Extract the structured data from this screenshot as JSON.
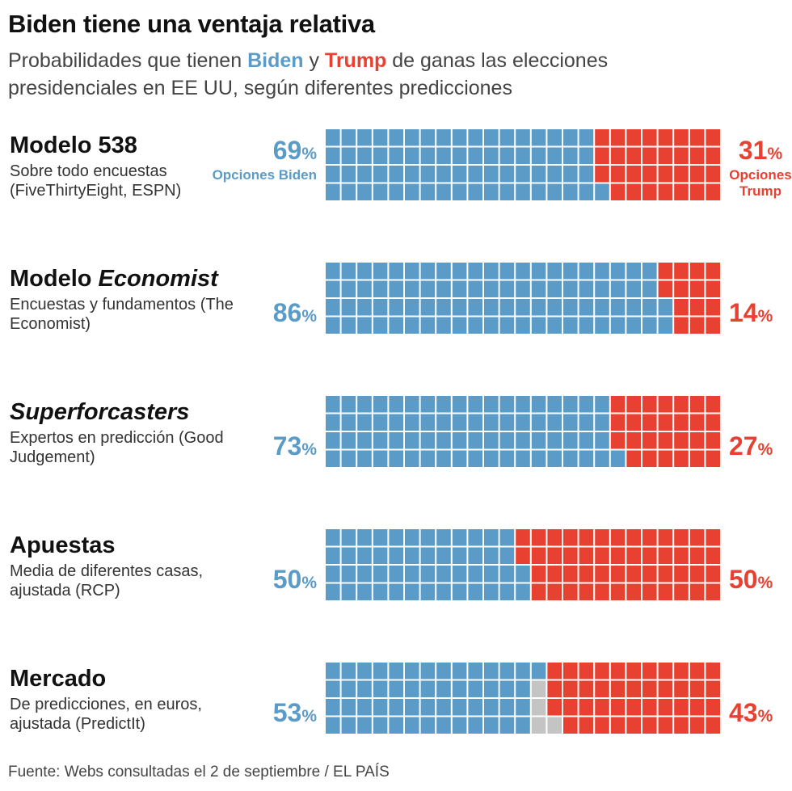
{
  "title": "Biden tiene una ventaja relativa",
  "subtitle": {
    "pre": "Probabilidades que tienen ",
    "biden": "Biden",
    "mid": " y ",
    "trump": "Trump",
    "post": " de ganas las elecciones presidenciales en EE UU, según diferentes predicciones"
  },
  "colors": {
    "biden": "#5b9bc8",
    "trump": "#e84132",
    "other": "#c4c4c4"
  },
  "chart_data": {
    "type": "waffle",
    "grid": {
      "rows": 4,
      "columns": 25
    },
    "rows": [
      {
        "head": "Modelo 538",
        "head_italic": false,
        "desc": "Sobre todo encuestas (FiveThirtyEight, ESPN)",
        "biden": 69,
        "trump": 31,
        "biden_label": "69",
        "trump_label": "31",
        "biden_note": "Opciones Biden",
        "trump_note": "Opciones Trump"
      },
      {
        "head_pre": "Modelo ",
        "head": "Economist",
        "head_italic": true,
        "desc": "Encuestas y fundamentos (The Economist)",
        "biden": 86,
        "trump": 14,
        "biden_label": "86",
        "trump_label": "14"
      },
      {
        "head": "Superforcasters",
        "head_italic": true,
        "desc": "Expertos en predicción (Good Judgement)",
        "biden": 73,
        "trump": 27,
        "biden_label": "73",
        "trump_label": "27"
      },
      {
        "head": "Apuestas",
        "head_italic": false,
        "desc": "Media de diferentes casas, ajustada (RCP)",
        "biden": 50,
        "trump": 50,
        "biden_label": "50",
        "trump_label": "50"
      },
      {
        "head": "Mercado",
        "head_italic": false,
        "desc": "De predicciones, en euros, ajustada (PredictIt)",
        "biden": 53,
        "trump": 43,
        "other": 4,
        "biden_label": "53",
        "trump_label": "43"
      }
    ],
    "percent_sign": "%"
  },
  "source": "Fuente: Webs consultadas el 2 de septiembre / EL PAÍS"
}
